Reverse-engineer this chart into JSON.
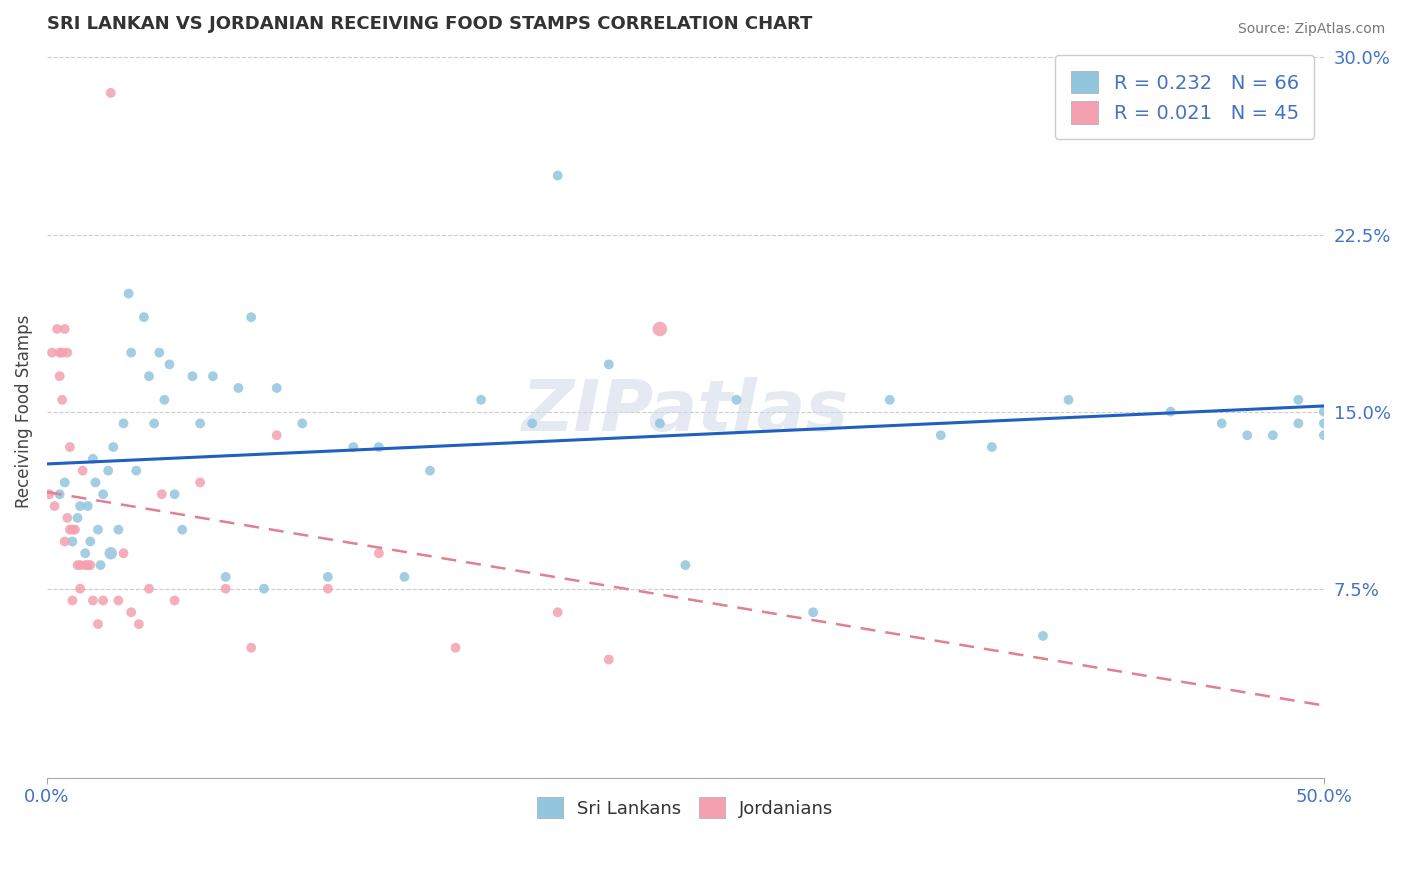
{
  "title": "SRI LANKAN VS JORDANIAN RECEIVING FOOD STAMPS CORRELATION CHART",
  "source": "Source: ZipAtlas.com",
  "ylabel": "Receiving Food Stamps",
  "xlim": [
    0.0,
    0.5
  ],
  "ylim": [
    -0.005,
    0.305
  ],
  "xticks": [
    0.0,
    0.5
  ],
  "xtick_labels": [
    "0.0%",
    "50.0%"
  ],
  "yticks": [
    0.0,
    0.075,
    0.15,
    0.225,
    0.3
  ],
  "ytick_labels": [
    "",
    "7.5%",
    "15.0%",
    "22.5%",
    "30.0%"
  ],
  "sri_lankan_color": "#92c5de",
  "jordanian_color": "#f4a0b0",
  "sri_lankan_R": 0.232,
  "sri_lankan_N": 66,
  "jordanian_R": 0.021,
  "jordanian_N": 45,
  "trend_blue_color": "#2060c0",
  "trend_pink_color": "#e08090",
  "background_color": "#ffffff",
  "sri_lankans_x": [
    0.005,
    0.007,
    0.01,
    0.012,
    0.013,
    0.015,
    0.016,
    0.017,
    0.018,
    0.019,
    0.02,
    0.021,
    0.022,
    0.024,
    0.025,
    0.026,
    0.028,
    0.03,
    0.032,
    0.033,
    0.035,
    0.038,
    0.04,
    0.042,
    0.044,
    0.046,
    0.048,
    0.05,
    0.053,
    0.057,
    0.06,
    0.065,
    0.07,
    0.075,
    0.08,
    0.085,
    0.09,
    0.1,
    0.11,
    0.12,
    0.13,
    0.14,
    0.15,
    0.17,
    0.19,
    0.2,
    0.22,
    0.24,
    0.25,
    0.27,
    0.3,
    0.33,
    0.35,
    0.37,
    0.39,
    0.4,
    0.42,
    0.44,
    0.46,
    0.47,
    0.48,
    0.49,
    0.49,
    0.5,
    0.5,
    0.5
  ],
  "sri_lankans_y": [
    0.115,
    0.12,
    0.095,
    0.105,
    0.11,
    0.09,
    0.11,
    0.095,
    0.13,
    0.12,
    0.1,
    0.085,
    0.115,
    0.125,
    0.09,
    0.135,
    0.1,
    0.145,
    0.2,
    0.175,
    0.125,
    0.19,
    0.165,
    0.145,
    0.175,
    0.155,
    0.17,
    0.115,
    0.1,
    0.165,
    0.145,
    0.165,
    0.08,
    0.16,
    0.19,
    0.075,
    0.16,
    0.145,
    0.08,
    0.135,
    0.135,
    0.08,
    0.125,
    0.155,
    0.145,
    0.25,
    0.17,
    0.145,
    0.085,
    0.155,
    0.065,
    0.155,
    0.14,
    0.135,
    0.055,
    0.155,
    0.295,
    0.15,
    0.145,
    0.14,
    0.14,
    0.155,
    0.145,
    0.15,
    0.14,
    0.145
  ],
  "sri_lankans_size": [
    50,
    50,
    50,
    50,
    50,
    50,
    50,
    50,
    50,
    50,
    50,
    50,
    50,
    50,
    80,
    50,
    50,
    50,
    50,
    50,
    50,
    50,
    50,
    50,
    50,
    50,
    50,
    50,
    50,
    50,
    50,
    50,
    50,
    50,
    50,
    50,
    50,
    50,
    50,
    50,
    50,
    50,
    50,
    50,
    50,
    50,
    50,
    50,
    50,
    50,
    50,
    50,
    50,
    50,
    50,
    50,
    50,
    50,
    50,
    50,
    50,
    50,
    50,
    50,
    50,
    50
  ],
  "jordanians_x": [
    0.001,
    0.002,
    0.003,
    0.004,
    0.005,
    0.005,
    0.006,
    0.006,
    0.007,
    0.007,
    0.008,
    0.008,
    0.009,
    0.009,
    0.01,
    0.01,
    0.011,
    0.012,
    0.013,
    0.013,
    0.014,
    0.015,
    0.016,
    0.017,
    0.018,
    0.02,
    0.022,
    0.025,
    0.028,
    0.03,
    0.033,
    0.036,
    0.04,
    0.045,
    0.05,
    0.06,
    0.07,
    0.08,
    0.09,
    0.11,
    0.13,
    0.16,
    0.2,
    0.22,
    0.24
  ],
  "jordanians_y": [
    0.115,
    0.175,
    0.11,
    0.185,
    0.175,
    0.165,
    0.175,
    0.155,
    0.185,
    0.095,
    0.175,
    0.105,
    0.135,
    0.1,
    0.1,
    0.07,
    0.1,
    0.085,
    0.075,
    0.085,
    0.125,
    0.085,
    0.085,
    0.085,
    0.07,
    0.06,
    0.07,
    0.285,
    0.07,
    0.09,
    0.065,
    0.06,
    0.075,
    0.115,
    0.07,
    0.12,
    0.075,
    0.05,
    0.14,
    0.075,
    0.09,
    0.05,
    0.065,
    0.045,
    0.185
  ],
  "jordanians_size": [
    50,
    50,
    50,
    50,
    50,
    50,
    50,
    50,
    50,
    50,
    50,
    50,
    50,
    50,
    50,
    50,
    50,
    50,
    50,
    50,
    50,
    50,
    50,
    50,
    50,
    50,
    50,
    50,
    50,
    50,
    50,
    50,
    50,
    50,
    50,
    50,
    50,
    50,
    50,
    50,
    50,
    50,
    50,
    50,
    110
  ],
  "watermark": "ZIPatlas"
}
